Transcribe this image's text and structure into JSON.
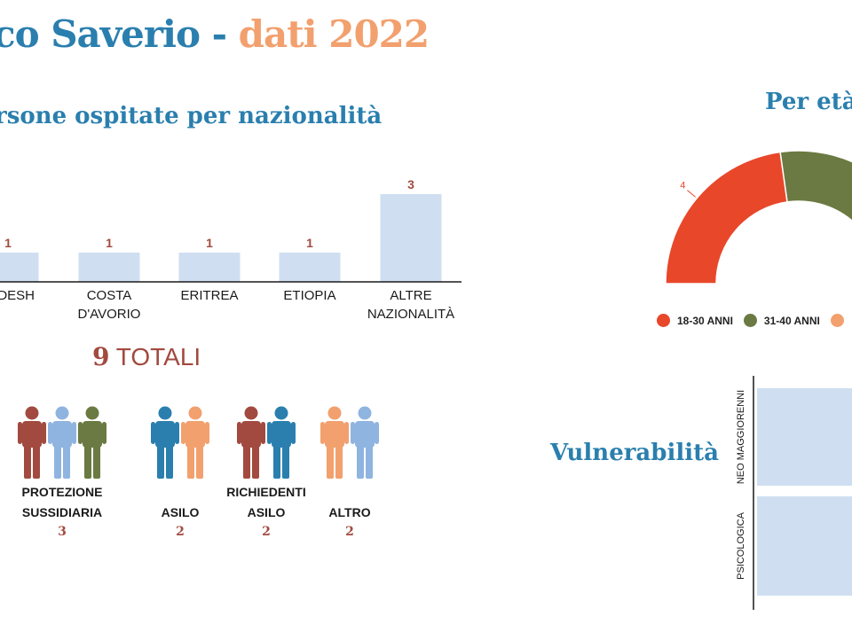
{
  "header": {
    "title_main": "co Saverio - ",
    "title_year": "dati 2022"
  },
  "nationality_section": {
    "title": "rsone ospitate per nazionalità"
  },
  "totals": {
    "number": "9",
    "label": "TOTALI"
  },
  "groups": [
    {
      "label_line1": "PROTEZIONE",
      "label_line2": "SUSSIDIARIA",
      "value": "3",
      "people_colors": [
        "#a24a3f",
        "#8fb4e0",
        "#6b7a42"
      ]
    },
    {
      "label_line1": "",
      "label_line2": "ASILO",
      "value": "2",
      "people_colors": [
        "#2a7fae",
        "#f2a06e"
      ]
    },
    {
      "label_line1": "RICHIEDENTI",
      "label_line2": "ASILO",
      "value": "2",
      "people_colors": [
        "#a24a3f",
        "#2a7fae"
      ]
    },
    {
      "label_line1": "",
      "label_line2": "ALTRO",
      "value": "2",
      "people_colors": [
        "#f2a06e",
        "#8fb4e0"
      ]
    }
  ],
  "age_section": {
    "title": "Per età"
  },
  "vulnerability_section": {
    "title": "Vulnerabilità"
  },
  "colors": {
    "blue": "#2a7fae",
    "orange": "#f2a06e",
    "bar_fill": "#cfdff1",
    "value_red": "#a24a3f",
    "red_18_30": "#e8472a",
    "green_31_40": "#6b7a42"
  },
  "chart_data": [
    {
      "type": "bar",
      "title": "rsone ospitate per nazionalità",
      "categories": [
        [
          "LADESH"
        ],
        [
          "COSTA",
          "D'AVORIO"
        ],
        [
          "ERITREA"
        ],
        [
          "ETIOPIA"
        ],
        [
          "ALTRE",
          "NAZIONALITÀ"
        ]
      ],
      "values": [
        1,
        1,
        1,
        1,
        3
      ],
      "data_labels": [
        "1",
        "1",
        "1",
        "1",
        "3"
      ],
      "ylim": [
        0,
        3
      ]
    },
    {
      "type": "pie",
      "subtype": "semi-donut",
      "title": "Per età",
      "labels": [
        "18-30 ANNI",
        "31-40 ANNI",
        ""
      ],
      "colors": [
        "#e8472a",
        "#6b7a42",
        "#f2a06e"
      ],
      "visible_values": [
        4
      ],
      "visible_value_labels": [
        "4"
      ],
      "legend_position": "bottom"
    },
    {
      "type": "bar",
      "orientation": "horizontal",
      "title": "Vulnerabilità",
      "categories": [
        "NEO MAGGIORENNI",
        "PSICOLOGICA"
      ]
    }
  ]
}
